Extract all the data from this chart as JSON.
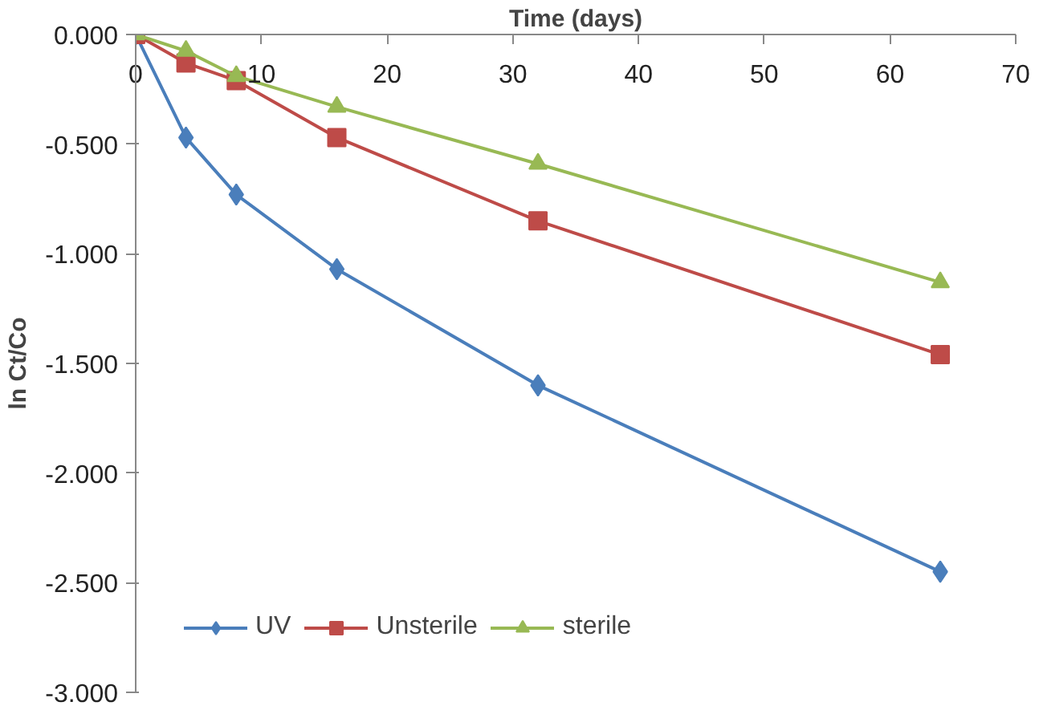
{
  "chart_data": {
    "type": "line",
    "xlabel": "Time (days)",
    "ylabel": "ln Ct/Co",
    "x": [
      0,
      4,
      8,
      16,
      32,
      64
    ],
    "series": [
      {
        "name": "UV",
        "color": "#4a7ebb",
        "marker": "diamond",
        "values": [
          0,
          -0.47,
          -0.73,
          -1.07,
          -1.6,
          -2.45
        ]
      },
      {
        "name": "Unsterile",
        "color": "#be4b48",
        "marker": "square",
        "values": [
          0,
          -0.13,
          -0.21,
          -0.47,
          -0.85,
          -1.46
        ]
      },
      {
        "name": "sterile",
        "color": "#98b954",
        "marker": "triangle",
        "values": [
          0,
          -0.075,
          -0.19,
          -0.33,
          -0.59,
          -1.13
        ]
      }
    ],
    "xlim": [
      0,
      70
    ],
    "xticks": [
      0,
      10,
      20,
      30,
      40,
      50,
      60,
      70
    ],
    "ylim": [
      -3,
      0
    ],
    "yticks": [
      {
        "value": 0,
        "label": "0.000"
      },
      {
        "value": -0.5,
        "label": "-0.500"
      },
      {
        "value": -1,
        "label": "-1.000"
      },
      {
        "value": -1.5,
        "label": "-1.500"
      },
      {
        "value": -2,
        "label": "-2.000"
      },
      {
        "value": -2.5,
        "label": "-2.500"
      },
      {
        "value": -3,
        "label": "-3.000"
      }
    ],
    "grid": false,
    "legend": "bottom left",
    "line_style": "solid"
  }
}
